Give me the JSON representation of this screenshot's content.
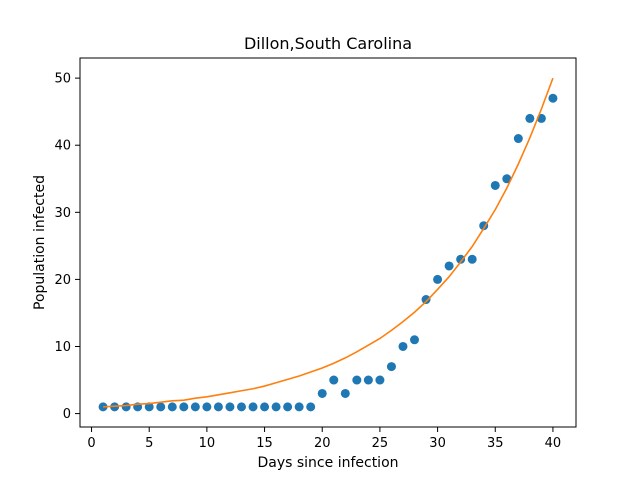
{
  "chart_data": {
    "type": "scatter",
    "title": "Dillon,South Carolina",
    "xlabel": "Days since infection",
    "ylabel": "Population infected",
    "xlim": [
      -1,
      42
    ],
    "ylim": [
      -2,
      53
    ],
    "x_ticks": [
      0,
      5,
      10,
      15,
      20,
      25,
      30,
      35,
      40
    ],
    "y_ticks": [
      0,
      10,
      20,
      30,
      40,
      50
    ],
    "grid": false,
    "legend": "none",
    "colors": {
      "points": "#1f77b4",
      "fit_line": "#ff7f0e"
    },
    "series": [
      {
        "type": "scatter",
        "x": [
          1,
          2,
          3,
          4,
          5,
          6,
          7,
          8,
          9,
          10,
          11,
          12,
          13,
          14,
          15,
          16,
          17,
          18,
          19,
          20,
          21,
          22,
          23,
          24,
          25,
          26,
          27,
          28,
          29,
          30,
          31,
          32,
          33,
          34,
          35,
          36,
          37,
          38,
          39,
          40
        ],
        "values": [
          1,
          1,
          1,
          1,
          1,
          1,
          1,
          1,
          1,
          1,
          1,
          1,
          1,
          1,
          1,
          1,
          1,
          1,
          1,
          3,
          5,
          3,
          5,
          5,
          5,
          7,
          10,
          11,
          17,
          20,
          22,
          23,
          23,
          28,
          34,
          35,
          41,
          44,
          44,
          47
        ]
      },
      {
        "type": "line",
        "x": [
          1,
          2,
          3,
          4,
          5,
          6,
          7,
          8,
          9,
          10,
          11,
          12,
          13,
          14,
          15,
          16,
          17,
          18,
          19,
          20,
          21,
          22,
          23,
          24,
          25,
          26,
          27,
          28,
          29,
          30,
          31,
          32,
          33,
          34,
          35,
          36,
          37,
          38,
          39,
          40
        ],
        "values": [
          1.0,
          1.1,
          1.2,
          1.4,
          1.5,
          1.7,
          1.9,
          2.0,
          2.3,
          2.5,
          2.8,
          3.1,
          3.4,
          3.7,
          4.1,
          4.6,
          5.1,
          5.6,
          6.2,
          6.8,
          7.5,
          8.3,
          9.2,
          10.2,
          11.2,
          12.4,
          13.7,
          15.1,
          16.7,
          18.5,
          20.4,
          22.6,
          24.9,
          27.6,
          30.4,
          33.6,
          37.2,
          41.1,
          45.4,
          50.0
        ]
      }
    ]
  }
}
